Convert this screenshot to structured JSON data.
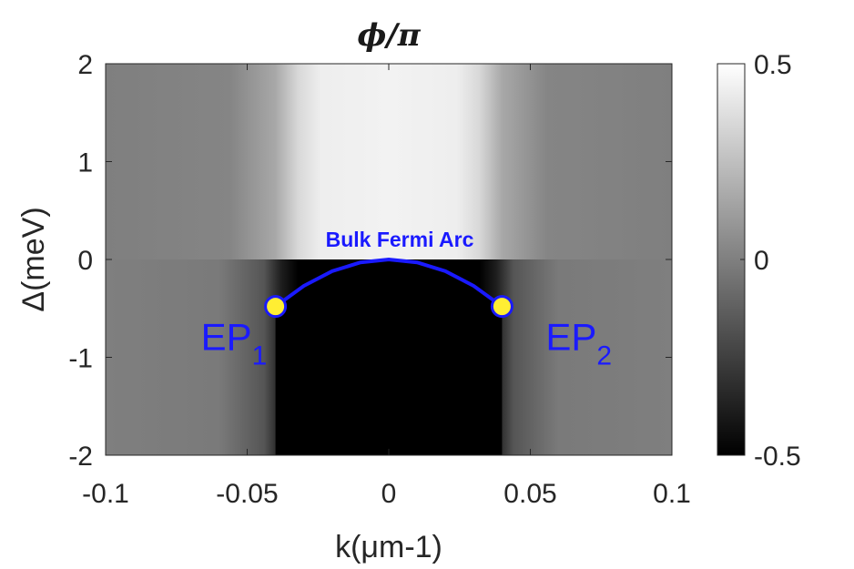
{
  "chart_data": {
    "type": "heatmap",
    "title": "ϕ/π",
    "xlabel": "k(μm-1)",
    "ylabel": "Δ(meV)",
    "xlim": [
      -0.1,
      0.1
    ],
    "ylim": [
      -2,
      2
    ],
    "xticks": [
      {
        "value": -0.1,
        "label": "-0.1"
      },
      {
        "value": -0.05,
        "label": "-0.05"
      },
      {
        "value": 0,
        "label": "0"
      },
      {
        "value": 0.05,
        "label": "0.05"
      },
      {
        "value": 0.1,
        "label": "0.1"
      }
    ],
    "yticks": [
      {
        "value": -2,
        "label": "-2"
      },
      {
        "value": -1,
        "label": "-1"
      },
      {
        "value": 0,
        "label": "0"
      },
      {
        "value": 1,
        "label": "1"
      },
      {
        "value": 2,
        "label": "2"
      }
    ],
    "colorbar": {
      "range": [
        -0.5,
        0.5
      ],
      "colormap": "gray",
      "ticks": [
        {
          "value": 0.5,
          "label": "0.5"
        },
        {
          "value": 0,
          "label": "0"
        },
        {
          "value": -0.5,
          "label": "-0.5"
        }
      ]
    },
    "field": {
      "outside_value": -0.05,
      "inside_upper_value": 0.45,
      "inside_lower_value": -0.5,
      "k_edge": 0.04
    },
    "arc": {
      "label": "Bulk Fermi Arc",
      "color": "#1a1aff",
      "points": [
        {
          "k": -0.04,
          "delta": -0.48
        },
        {
          "k": -0.03,
          "delta": -0.27
        },
        {
          "k": -0.02,
          "delta": -0.12
        },
        {
          "k": -0.01,
          "delta": -0.03
        },
        {
          "k": 0,
          "delta": 0
        },
        {
          "k": 0.01,
          "delta": -0.03
        },
        {
          "k": 0.02,
          "delta": -0.12
        },
        {
          "k": 0.03,
          "delta": -0.27
        },
        {
          "k": 0.04,
          "delta": -0.48
        }
      ]
    },
    "exceptional_points": [
      {
        "name": "EP",
        "sub": "1",
        "k": -0.04,
        "delta": -0.48,
        "fill": "#ffee33",
        "stroke": "#1a1aff"
      },
      {
        "name": "EP",
        "sub": "2",
        "k": 0.04,
        "delta": -0.48,
        "fill": "#ffee33",
        "stroke": "#1a1aff"
      }
    ]
  }
}
